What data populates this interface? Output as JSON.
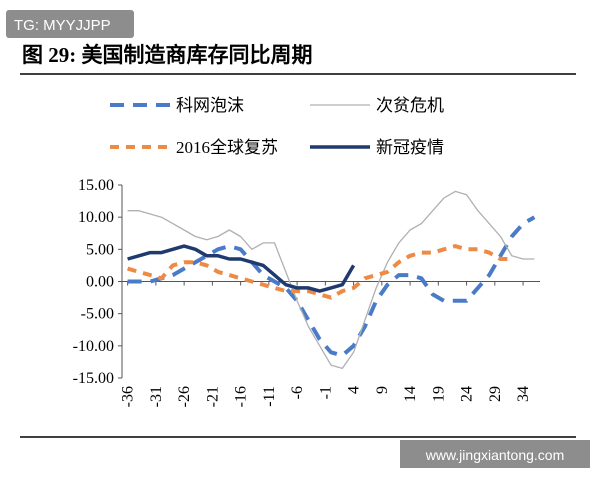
{
  "watermark": "TG: MYYJJPP",
  "site": "www.jingxiantong.com",
  "chart_data": {
    "type": "line",
    "title": "图 29: 美国制造商库存同比周期",
    "x": [
      -36,
      -34,
      -32,
      -30,
      -28,
      -26,
      -24,
      -22,
      -20,
      -18,
      -16,
      -14,
      -12,
      -10,
      -8,
      -6,
      -4,
      -2,
      0,
      2,
      4,
      6,
      8,
      10,
      12,
      14,
      16,
      18,
      20,
      22,
      24,
      26,
      28,
      30,
      32,
      34,
      36
    ],
    "xlim": [
      -37,
      37
    ],
    "xticks": [
      -36,
      -31,
      -26,
      -21,
      -16,
      -11,
      -6,
      -1,
      4,
      9,
      14,
      19,
      24,
      29,
      34
    ],
    "ylim": [
      -15,
      15
    ],
    "yticks": [
      {
        "value": -15,
        "label": "-15.00"
      },
      {
        "value": -10,
        "label": "-10.00"
      },
      {
        "value": -5,
        "label": "-5.00"
      },
      {
        "value": 0,
        "label": "0.00"
      },
      {
        "value": 5,
        "label": "5.00"
      },
      {
        "value": 10,
        "label": "10.00"
      },
      {
        "value": 15,
        "label": "15.00"
      }
    ],
    "series": [
      {
        "name": "科网泡沫",
        "color": "#4a7bc8",
        "style": "dashed",
        "values": [
          0,
          0,
          0,
          0.5,
          1,
          2,
          3,
          4,
          5,
          5.5,
          5,
          3,
          1,
          0,
          -1,
          -3,
          -6,
          -9,
          -11,
          -11.5,
          -10,
          -7,
          -3,
          -0.5,
          1,
          1,
          0.5,
          -2,
          -3,
          -3,
          -3,
          -1,
          1,
          4,
          7,
          9,
          10
        ]
      },
      {
        "name": "次贫危机",
        "color": "#b0b0b0",
        "style": "solid",
        "values": [
          11,
          11,
          10.5,
          10,
          9,
          8,
          7,
          6.5,
          7,
          8,
          7,
          5,
          6,
          6,
          1.5,
          -3,
          -7,
          -10,
          -13,
          -13.5,
          -11,
          -6,
          -1,
          3,
          6,
          8,
          9,
          11,
          13,
          14,
          13.5,
          11,
          9,
          7,
          4,
          3.5,
          3.5
        ]
      },
      {
        "name": "2016全球复苏",
        "color": "#ed8a45",
        "style": "dashed",
        "values": [
          2,
          1.5,
          1,
          0.5,
          2.5,
          3,
          3,
          2.5,
          1.5,
          1,
          0.5,
          0,
          -0.5,
          -1,
          -1.5,
          -1.5,
          -1.5,
          -2,
          -2.5,
          -1.5,
          -1,
          0.5,
          1,
          1.5,
          3,
          4,
          4.5,
          4.5,
          5,
          5.5,
          5,
          5,
          4.5,
          3.5,
          3.5,
          null,
          null
        ]
      },
      {
        "name": "新冠疫情",
        "color": "#1f3a6e",
        "style": "solid",
        "values": [
          3.5,
          4,
          4.5,
          4.5,
          5,
          5.5,
          5,
          4,
          4,
          3.5,
          3.5,
          3,
          2.5,
          1,
          -0.5,
          -1,
          -1,
          -1.5,
          -1,
          -0.5,
          2.5,
          null,
          null,
          null,
          null,
          null,
          null,
          null,
          null,
          null,
          null,
          null,
          null,
          null,
          null,
          null,
          null
        ]
      }
    ]
  }
}
